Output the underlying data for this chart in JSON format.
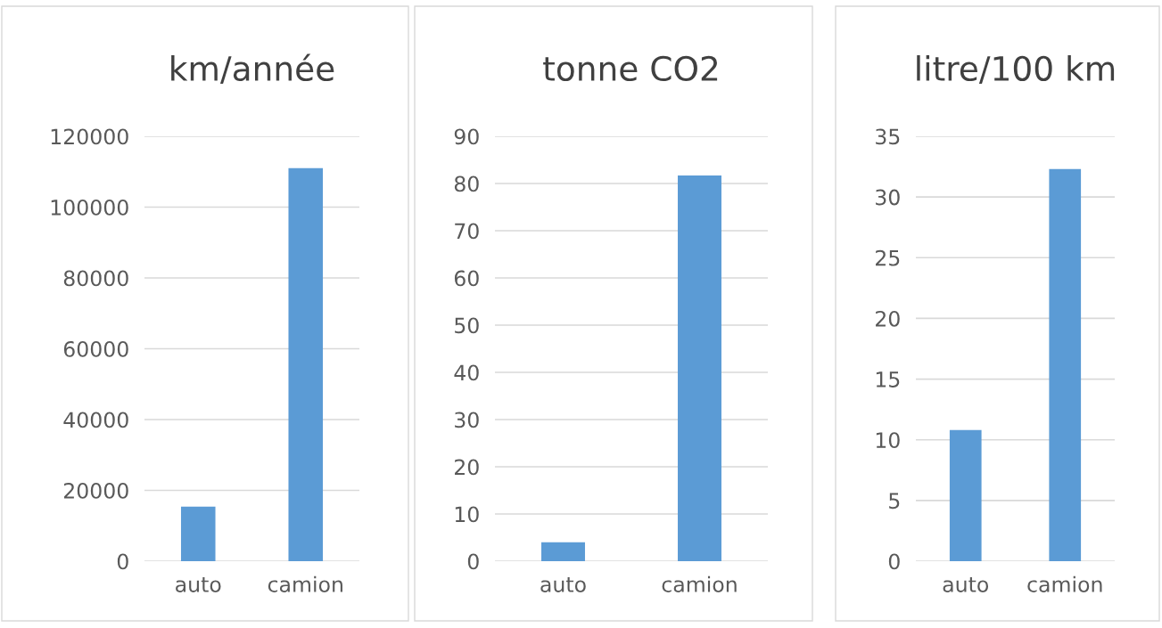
{
  "chart_data": [
    {
      "type": "bar",
      "title": "km/année",
      "categories": [
        "auto",
        "camion"
      ],
      "values": [
        15400,
        111000
      ],
      "color": "#5b9bd5",
      "ylim": [
        0,
        120000
      ],
      "yticks": [
        0,
        20000,
        40000,
        60000,
        80000,
        100000,
        120000
      ],
      "grid": "y"
    },
    {
      "type": "bar",
      "title": "tonne CO2",
      "categories": [
        "auto",
        "camion"
      ],
      "values": [
        4,
        81.7
      ],
      "color": "#5b9bd5",
      "ylim": [
        0,
        90
      ],
      "yticks": [
        0,
        10,
        20,
        30,
        40,
        50,
        60,
        70,
        80,
        90
      ],
      "grid": "y"
    },
    {
      "type": "bar",
      "title": "litre/100 km",
      "categories": [
        "auto",
        "camion"
      ],
      "values": [
        10.8,
        32.3
      ],
      "color": "#5b9bd5",
      "ylim": [
        0,
        35
      ],
      "yticks": [
        0,
        5,
        10,
        15,
        20,
        25,
        30,
        35
      ],
      "grid": "y"
    }
  ]
}
